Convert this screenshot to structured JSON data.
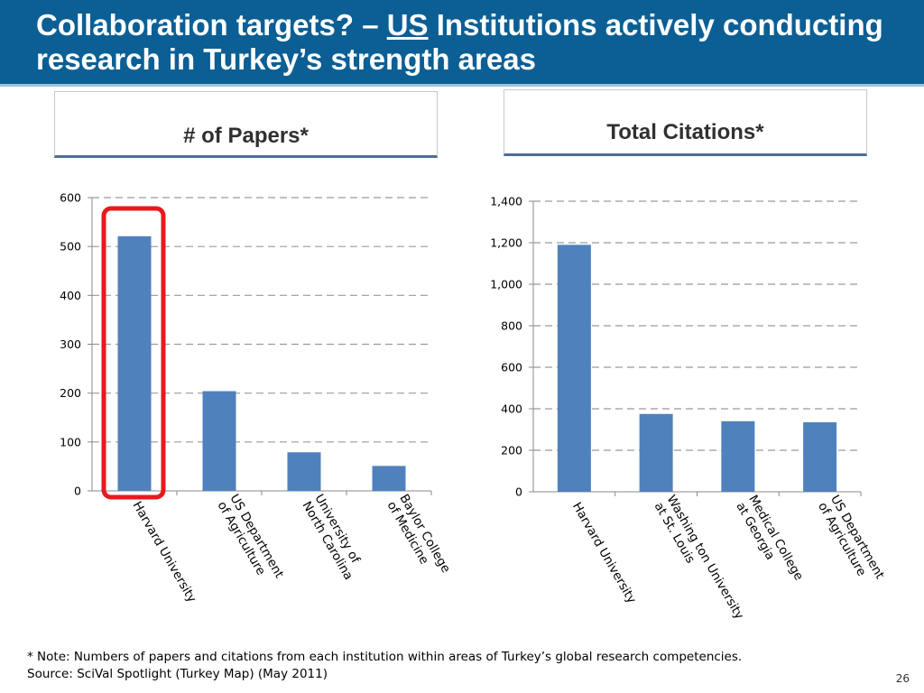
{
  "slide": {
    "title_part1": "Collaboration targets? – ",
    "title_us": "US",
    "title_part2": " Institutions actively conducting research in Turkey’s strength areas",
    "page_number": "26",
    "note": "* Note: Numbers of papers and citations from each institution within areas of Turkey’s global research competencies.",
    "source": "Source: SciVal Spotlight  (Turkey Map) (May 2011)",
    "highlight_color": "#e8191e",
    "bar_color": "#4f81bd",
    "header_color": "#0b5f94"
  },
  "chart_data": [
    {
      "type": "bar",
      "title": "# of Papers*",
      "categories": [
        [
          "Harvard University"
        ],
        [
          "US Department",
          "of Agriculture"
        ],
        [
          "University of",
          "North Carolina"
        ],
        [
          "Baylor College",
          "of Medicine"
        ]
      ],
      "values": [
        521,
        204,
        79,
        51
      ],
      "ylim": [
        0,
        600
      ],
      "yticks": [
        0,
        100,
        200,
        300,
        400,
        500,
        600
      ],
      "ytick_labels": [
        "0",
        "100",
        "200",
        "300",
        "400",
        "500",
        "600"
      ],
      "grid": true,
      "highlighted_category": "Harvard University"
    },
    {
      "type": "bar",
      "title": "Total Citations*",
      "categories": [
        [
          "Harvard University"
        ],
        [
          "Washing ton University",
          "at St. Louis"
        ],
        [
          "Medical College",
          "at Georgia"
        ],
        [
          "US Department",
          "of Agriculture"
        ]
      ],
      "values": [
        1190,
        375,
        340,
        335
      ],
      "ylim": [
        0,
        1400
      ],
      "yticks": [
        0,
        200,
        400,
        600,
        800,
        1000,
        1200,
        1400
      ],
      "ytick_labels": [
        "0",
        "200",
        "400",
        "600",
        "800",
        "1,000",
        "1,200",
        "1,400"
      ],
      "grid": true
    }
  ]
}
